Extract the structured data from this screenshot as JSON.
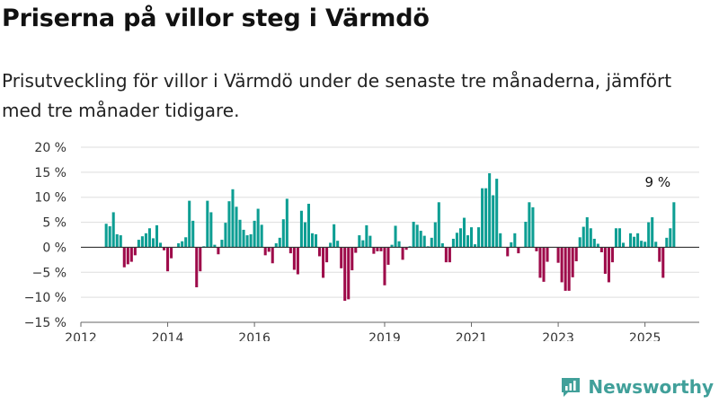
{
  "title": "Priserna på villor steg i Värmdö",
  "subtitle": "Prisutveckling för villor i Värmdö under de senaste tre månaderna, jämfört med tre månader tidigare.",
  "brand": {
    "name": "Newsworthy",
    "icon": "newsworthy-logo-icon",
    "color": "#41a09a"
  },
  "colors": {
    "positive": "#0d9e93",
    "negative": "#9e0b4a",
    "grid": "#dddddd",
    "zero_line": "#333333"
  },
  "chart_data": {
    "type": "bar",
    "x_unit": "month",
    "start": "2012-08",
    "ylim": [
      -15,
      20
    ],
    "yticks": [
      -15,
      -10,
      -5,
      0,
      5,
      10,
      15,
      20
    ],
    "ytick_labels": [
      "−15 %",
      "−10 %",
      "−5 %",
      "0 %",
      "5 %",
      "10 %",
      "15 %",
      "20 %"
    ],
    "xlim": [
      "2012-01",
      "2026-04"
    ],
    "xticks": [
      {
        "label": "2012",
        "date": "2012-01"
      },
      {
        "label": "2014",
        "date": "2014-01"
      },
      {
        "label": "2016",
        "date": "2016-01"
      },
      {
        "label": "2019",
        "date": "2019-01"
      },
      {
        "label": "2021",
        "date": "2021-01"
      },
      {
        "label": "2023",
        "date": "2023-01"
      },
      {
        "label": "2025",
        "date": "2025-01"
      }
    ],
    "values": [
      4.7,
      4.2,
      7.0,
      2.6,
      2.4,
      -4.0,
      -3.4,
      -2.9,
      -1.6,
      1.5,
      2.2,
      2.8,
      3.8,
      1.8,
      4.4,
      0.9,
      -0.6,
      -4.8,
      -2.2,
      0.0,
      0.8,
      1.2,
      2.0,
      9.3,
      5.3,
      -8.0,
      -4.8,
      0.2,
      9.3,
      7.0,
      0.5,
      -1.4,
      1.5,
      4.9,
      9.2,
      11.6,
      8.1,
      5.5,
      3.5,
      2.4,
      2.6,
      5.3,
      7.7,
      4.5,
      -1.6,
      -0.9,
      -3.2,
      0.8,
      1.9,
      5.6,
      9.7,
      -1.2,
      -4.5,
      -5.4,
      7.3,
      5.0,
      8.7,
      2.8,
      2.6,
      -1.8,
      -6.1,
      -3.0,
      0.9,
      4.6,
      1.3,
      -4.2,
      -10.7,
      -10.4,
      -4.6,
      -1.1,
      2.4,
      1.4,
      4.4,
      2.3,
      -1.3,
      -0.8,
      -0.8,
      -7.6,
      -3.5,
      0.5,
      4.3,
      1.2,
      -2.5,
      -0.5,
      0.2,
      5.1,
      4.5,
      3.3,
      2.3,
      0.2,
      1.9,
      5.0,
      9.0,
      0.8,
      -3.0,
      -3.0,
      1.7,
      2.9,
      3.8,
      5.9,
      2.4,
      4.0,
      0.6,
      4.0,
      11.8,
      11.8,
      14.8,
      10.4,
      13.7,
      2.8,
      0.0,
      -1.8,
      1.0,
      2.8,
      -1.2,
      0.0,
      5.1,
      9.0,
      8.0,
      -0.8,
      -6.1,
      -6.9,
      -2.9,
      0.0,
      0.0,
      -3.1,
      -7.0,
      -8.7,
      -8.7,
      -6.0,
      -2.8,
      2.0,
      4.1,
      6.0,
      3.8,
      1.7,
      0.7,
      -1.0,
      -5.3,
      -7.0,
      -3.0,
      3.8,
      3.8,
      0.9,
      0.0,
      2.8,
      2.1,
      2.8,
      1.3,
      1.1,
      5.0,
      6.0,
      1.1,
      -2.9,
      -6.1,
      1.9,
      3.8,
      9.0
    ],
    "annotations": [
      {
        "text": "9 %",
        "date": "2025-08"
      }
    ]
  }
}
